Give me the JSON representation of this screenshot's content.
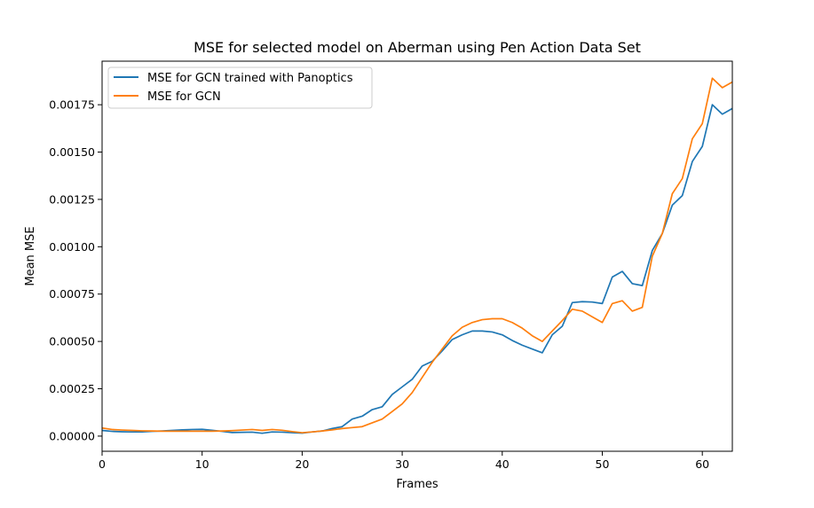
{
  "chart_data": {
    "type": "line",
    "title": "MSE for selected model on Aberman using Pen Action Data Set",
    "xlabel": "Frames",
    "ylabel": "Mean MSE",
    "xlim": [
      0,
      63
    ],
    "ylim": [
      -8e-05,
      0.00198
    ],
    "xticks": [
      0,
      10,
      20,
      30,
      40,
      50,
      60
    ],
    "yticks": [
      0.0,
      0.00025,
      0.0005,
      0.00075,
      0.001,
      0.00125,
      0.0015,
      0.00175
    ],
    "ytick_labels": [
      "0.00000",
      "0.00025",
      "0.00050",
      "0.00075",
      "0.00100",
      "0.00125",
      "0.00150",
      "0.00175"
    ],
    "grid": false,
    "legend_position": "top-left",
    "x": [
      0,
      1,
      2,
      3,
      4,
      5,
      6,
      7,
      8,
      9,
      10,
      11,
      12,
      13,
      14,
      15,
      16,
      17,
      18,
      19,
      20,
      21,
      22,
      23,
      24,
      25,
      26,
      27,
      28,
      29,
      30,
      31,
      32,
      33,
      34,
      35,
      36,
      37,
      38,
      39,
      40,
      41,
      42,
      43,
      44,
      45,
      46,
      47,
      48,
      49,
      50,
      51,
      52,
      53,
      54,
      55,
      56,
      57,
      58,
      59,
      60,
      61,
      62,
      63
    ],
    "series": [
      {
        "name": "MSE for GCN trained with Panoptics",
        "color": "#1f77b4",
        "values": [
          3e-05,
          2.5e-05,
          2.3e-05,
          2.2e-05,
          2.2e-05,
          2.5e-05,
          2.7e-05,
          3e-05,
          3.3e-05,
          3.5e-05,
          3.6e-05,
          3.1e-05,
          2.5e-05,
          1.9e-05,
          2e-05,
          2.1e-05,
          1.5e-05,
          2.2e-05,
          2.1e-05,
          1.8e-05,
          1.6e-05,
          2.2e-05,
          2.7e-05,
          4e-05,
          5e-05,
          9e-05,
          0.000105,
          0.00014,
          0.000155,
          0.00022,
          0.00026,
          0.0003,
          0.00037,
          0.000395,
          0.00045,
          0.00051,
          0.000535,
          0.000555,
          0.000555,
          0.00055,
          0.000535,
          0.000505,
          0.00048,
          0.00046,
          0.00044,
          0.000535,
          0.00058,
          0.000705,
          0.00071,
          0.000708,
          0.0007,
          0.00084,
          0.00087,
          0.000805,
          0.000795,
          0.00098,
          0.00107,
          0.00122,
          0.00127,
          0.00145,
          0.00153,
          0.00175,
          0.0017,
          0.00173
        ]
      },
      {
        "name": "MSE for GCN",
        "color": "#ff7f0e",
        "values": [
          4.3e-05,
          3.5e-05,
          3.2e-05,
          3e-05,
          2.8e-05,
          2.7e-05,
          2.6e-05,
          2.6e-05,
          2.6e-05,
          2.6e-05,
          2.6e-05,
          2.6e-05,
          2.7e-05,
          2.9e-05,
          3.2e-05,
          3.5e-05,
          3e-05,
          3.5e-05,
          3.1e-05,
          2.4e-05,
          1.8e-05,
          2.2e-05,
          2.7e-05,
          3.3e-05,
          4e-05,
          4.5e-05,
          5e-05,
          7e-05,
          9e-05,
          0.00013,
          0.00017,
          0.00023,
          0.00031,
          0.00039,
          0.00046,
          0.00053,
          0.000575,
          0.0006,
          0.000615,
          0.00062,
          0.00062,
          0.0006,
          0.00057,
          0.00053,
          0.0005,
          0.000555,
          0.00061,
          0.00067,
          0.00066,
          0.00063,
          0.0006,
          0.0007,
          0.000715,
          0.00066,
          0.00068,
          0.00095,
          0.00107,
          0.00128,
          0.00136,
          0.00157,
          0.00165,
          0.00189,
          0.00184,
          0.00187
        ]
      }
    ]
  }
}
